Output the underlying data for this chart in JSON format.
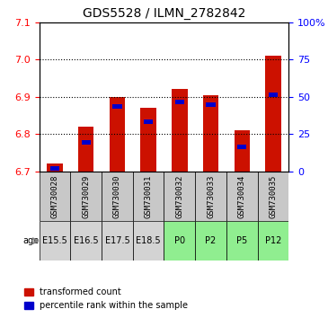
{
  "title": "GDS5528 / ILMN_2782842",
  "samples": [
    "GSM730028",
    "GSM730029",
    "GSM730030",
    "GSM730031",
    "GSM730032",
    "GSM730033",
    "GSM730034",
    "GSM730035"
  ],
  "ages": [
    "E15.5",
    "E16.5",
    "E17.5",
    "E18.5",
    "P0",
    "P2",
    "P5",
    "P12"
  ],
  "age_colors": [
    "#d3d3d3",
    "#d3d3d3",
    "#d3d3d3",
    "#d3d3d3",
    "#90ee90",
    "#90ee90",
    "#90ee90",
    "#90ee90"
  ],
  "transformed_counts": [
    6.72,
    6.82,
    6.9,
    6.87,
    6.92,
    6.905,
    6.81,
    7.01
  ],
  "percentile_ranks": [
    0.5,
    18,
    42,
    32,
    45,
    43,
    15,
    50
  ],
  "ylim_left": [
    6.7,
    7.1
  ],
  "ylim_right": [
    0,
    100
  ],
  "yticks_left": [
    6.7,
    6.8,
    6.9,
    7.0,
    7.1
  ],
  "yticks_right": [
    0,
    25,
    50,
    75,
    100
  ],
  "bar_color_red": "#cc1100",
  "bar_color_blue": "#0000cc",
  "sample_bg_color": "#c8c8c8",
  "age_bg_gray": "#d3d3d3",
  "age_bg_green": "#90ee90",
  "legend_red_label": "transformed count",
  "legend_blue_label": "percentile rank within the sample",
  "age_label": "age"
}
